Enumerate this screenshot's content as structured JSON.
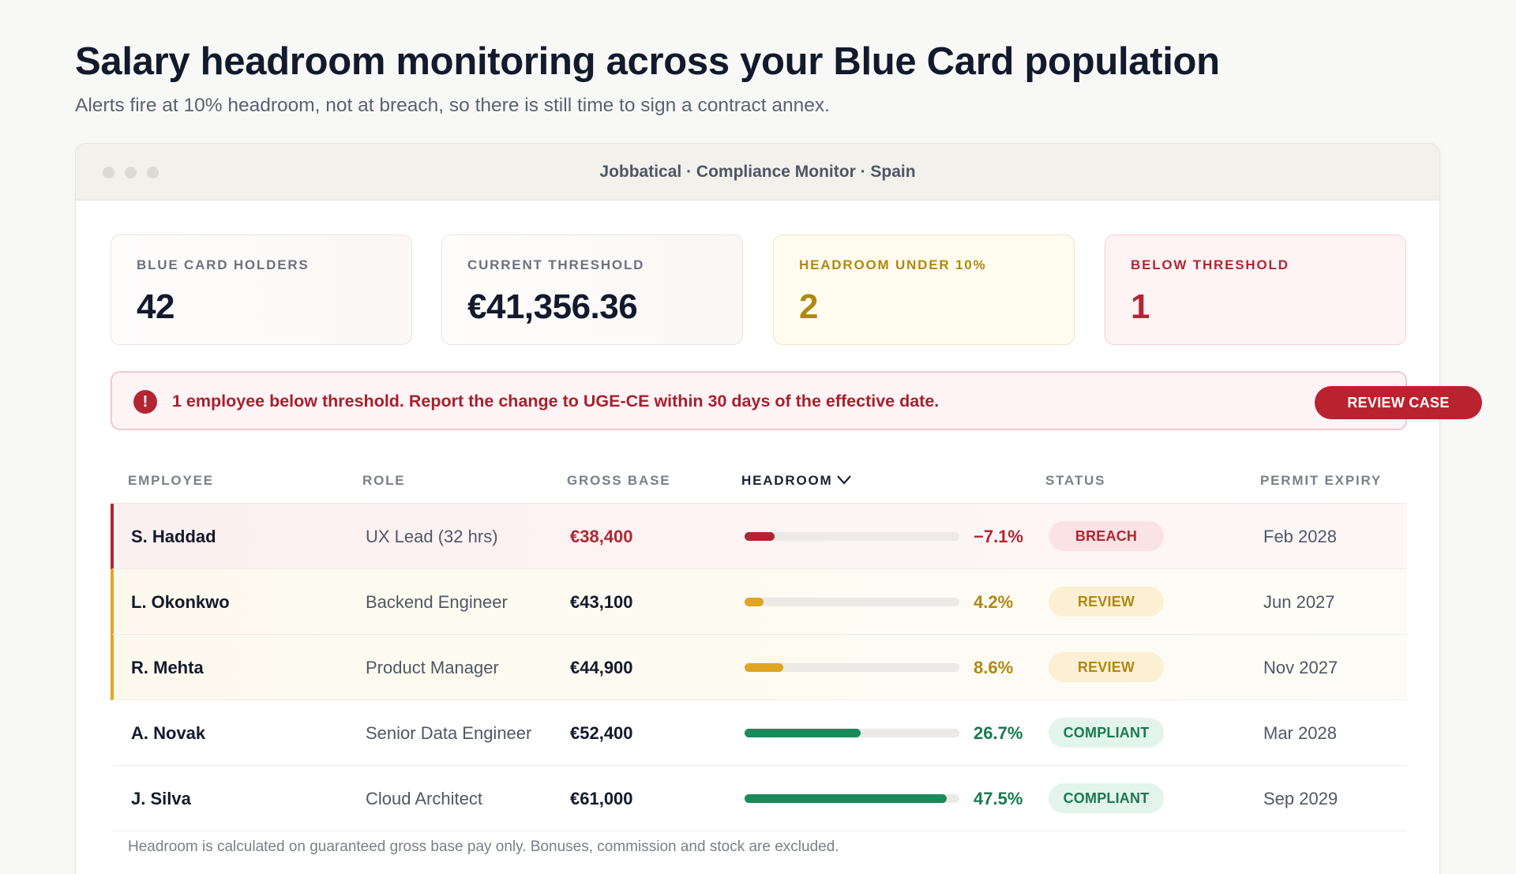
{
  "header": {
    "title": "Salary headroom monitoring across your Blue Card population",
    "subtitle": "Alerts fire at 10% headroom, not at breach, so there is still time to sign a contract annex."
  },
  "window": {
    "title": "Jobbatical · Compliance Monitor · Spain"
  },
  "kpis": [
    {
      "label": "BLUE CARD HOLDERS",
      "value": "42"
    },
    {
      "label": "CURRENT THRESHOLD",
      "value": "€41,356.36"
    },
    {
      "label": "HEADROOM UNDER 10%",
      "value": "2"
    },
    {
      "label": "BELOW THRESHOLD",
      "value": "1"
    }
  ],
  "alert": {
    "icon": "exclamation-icon",
    "text": "1 employee below threshold. Report the change to UGE-CE within 30 days of the effective date.",
    "button": "REVIEW CASE"
  },
  "table": {
    "columns": [
      "EMPLOYEE",
      "ROLE",
      "GROSS BASE",
      "HEADROOM",
      "STATUS",
      "PERMIT EXPIRY"
    ],
    "sort_icon": "chevron-down-icon",
    "rows": [
      {
        "name": "S. Haddad",
        "role": "UX Lead (32 hrs)",
        "gross": "€38,400",
        "headroom": "−7.1%",
        "bar_fraction": 0.14,
        "status": "BREACH",
        "expiry": "Feb 2028"
      },
      {
        "name": "L. Okonkwo",
        "role": "Backend Engineer",
        "gross": "€43,100",
        "headroom": "4.2%",
        "bar_fraction": 0.09,
        "status": "REVIEW",
        "expiry": "Jun 2027"
      },
      {
        "name": "R. Mehta",
        "role": "Product Manager",
        "gross": "€44,900",
        "headroom": "8.6%",
        "bar_fraction": 0.18,
        "status": "REVIEW",
        "expiry": "Nov 2027"
      },
      {
        "name": "A. Novak",
        "role": "Senior Data Engineer",
        "gross": "€52,400",
        "headroom": "26.7%",
        "bar_fraction": 0.54,
        "status": "COMPLIANT",
        "expiry": "Mar 2028"
      },
      {
        "name": "J. Silva",
        "role": "Cloud Architect",
        "gross": "€61,000",
        "headroom": "47.5%",
        "bar_fraction": 0.94,
        "status": "COMPLIANT",
        "expiry": "Sep 2029"
      }
    ]
  },
  "footnote": "Headroom is calculated on guaranteed gross base pay only. Bonuses, commission and stock are excluded.",
  "colors": {
    "breach": "#b22634",
    "review": "#e0a521",
    "review_text": "#b08912",
    "compliant": "#1a8a5a",
    "compliant_text": "#187a4e"
  }
}
